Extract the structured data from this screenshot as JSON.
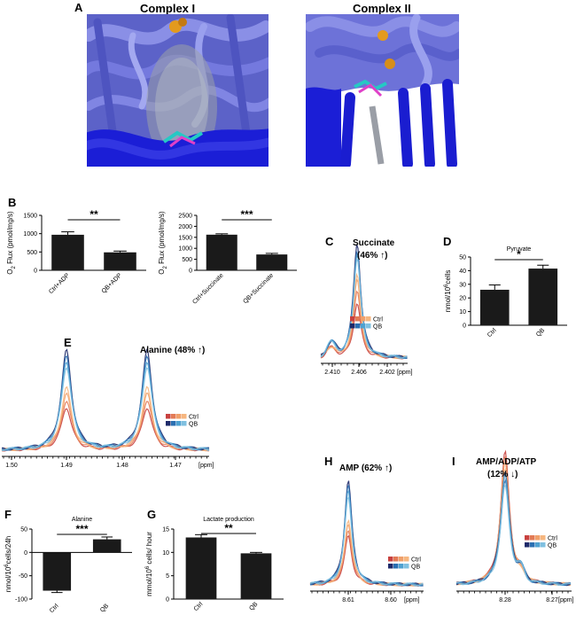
{
  "panel_a": {
    "label": "A",
    "left_title": "Complex I",
    "right_title": "Complex II"
  },
  "colors": {
    "protein_light": "#6d72d8",
    "protein_dark": "#1b1ed6",
    "ctrl_shades": [
      "#c8413f",
      "#e37a55",
      "#f0a06a",
      "#f6b67f"
    ],
    "qb_shades": [
      "#1e2a6a",
      "#2a6fb2",
      "#4ea1d1",
      "#7fc0e0"
    ],
    "bar_fill": "#1a1a1a"
  },
  "chart_data": [
    {
      "id": "B1",
      "panel": "B",
      "type": "bar",
      "categories": [
        "Ctrl+ADP",
        "QB+ADP"
      ],
      "values": [
        970,
        490
      ],
      "errors": [
        80,
        35
      ],
      "ylabel_main": "O",
      "ylabel_sub": "2",
      "ylabel_rest": " Flux (pmol/mg/s)",
      "ylim": [
        0,
        1500
      ],
      "yticks": [
        "0",
        "500",
        "1000",
        "1500"
      ],
      "significance": "**"
    },
    {
      "id": "B2",
      "type": "bar",
      "categories": [
        "Ctrl+Succinate",
        "QB+Succinate"
      ],
      "values": [
        1620,
        720
      ],
      "errors": [
        40,
        50
      ],
      "ylabel_main": "O",
      "ylabel_sub": "2",
      "ylabel_rest": " Flux (pmol/mg/s)",
      "ylim": [
        0,
        2500
      ],
      "yticks": [
        "0",
        "500",
        "1000",
        "1500",
        "2000",
        "2500"
      ],
      "significance": "***"
    },
    {
      "id": "C",
      "panel": "C",
      "type": "line",
      "annotation_line1": "Succinate",
      "annotation_line2": "(46% ↑)",
      "xticks": [
        "2.410",
        "2.406",
        "2.402"
      ],
      "xunit": "[ppm]",
      "legend": [
        "Ctrl",
        "QB"
      ]
    },
    {
      "id": "D",
      "panel": "D",
      "type": "bar",
      "title": "Pyruvate",
      "categories": [
        "Ctrl",
        "QB"
      ],
      "values": [
        26,
        41.5
      ],
      "errors": [
        3.5,
        2.5
      ],
      "ylabel_main": "nmol/10",
      "ylabel_sup": "6",
      "ylabel_rest": "cells",
      "ylim": [
        0,
        50
      ],
      "yticks": [
        "0",
        "10",
        "20",
        "30",
        "40",
        "50"
      ],
      "significance": "*"
    },
    {
      "id": "E",
      "panel": "E",
      "type": "line",
      "annotation": "Alanine (48% ↑)",
      "xticks": [
        "1.50",
        "1.49",
        "1.48",
        "1.47"
      ],
      "xunit": "[ppm]",
      "legend": [
        "Ctrl",
        "QB"
      ]
    },
    {
      "id": "F",
      "panel": "F",
      "type": "bar",
      "title": "Alanine",
      "categories": [
        "Ctrl",
        "QB"
      ],
      "values": [
        -82,
        28
      ],
      "errors": [
        4,
        5
      ],
      "ylabel_main": "nmol/10",
      "ylabel_sup": "6",
      "ylabel_rest": "cells/24h",
      "ylim": [
        -100,
        50
      ],
      "yticks": [
        "-100",
        "-50",
        "0",
        "50"
      ],
      "significance": "***"
    },
    {
      "id": "G",
      "panel": "G",
      "type": "bar",
      "title": "Lactate production",
      "categories": [
        "Ctrl",
        "QB"
      ],
      "values": [
        13.2,
        9.8
      ],
      "errors": [
        0.6,
        0.2
      ],
      "ylabel_main": "mmol/10",
      "ylabel_sup": "6",
      "ylabel_rest": " cells/ hour",
      "ylim": [
        0,
        15
      ],
      "yticks": [
        "0",
        "5",
        "10",
        "15"
      ],
      "significance": "**"
    },
    {
      "id": "H",
      "panel": "H",
      "type": "line",
      "annotation": "AMP (62% ↑)",
      "xticks": [
        "8.61",
        "8.60"
      ],
      "xunit": "[ppm]",
      "legend": [
        "Ctrl",
        "QB"
      ]
    },
    {
      "id": "I",
      "panel": "I",
      "type": "line",
      "annotation_line1": "AMP/ADP/ATP",
      "annotation_line2": "(12% ↓)",
      "xticks": [
        "8.28",
        "8.27"
      ],
      "xunit": "[ppm]",
      "legend": [
        "Ctrl",
        "QB"
      ]
    }
  ]
}
